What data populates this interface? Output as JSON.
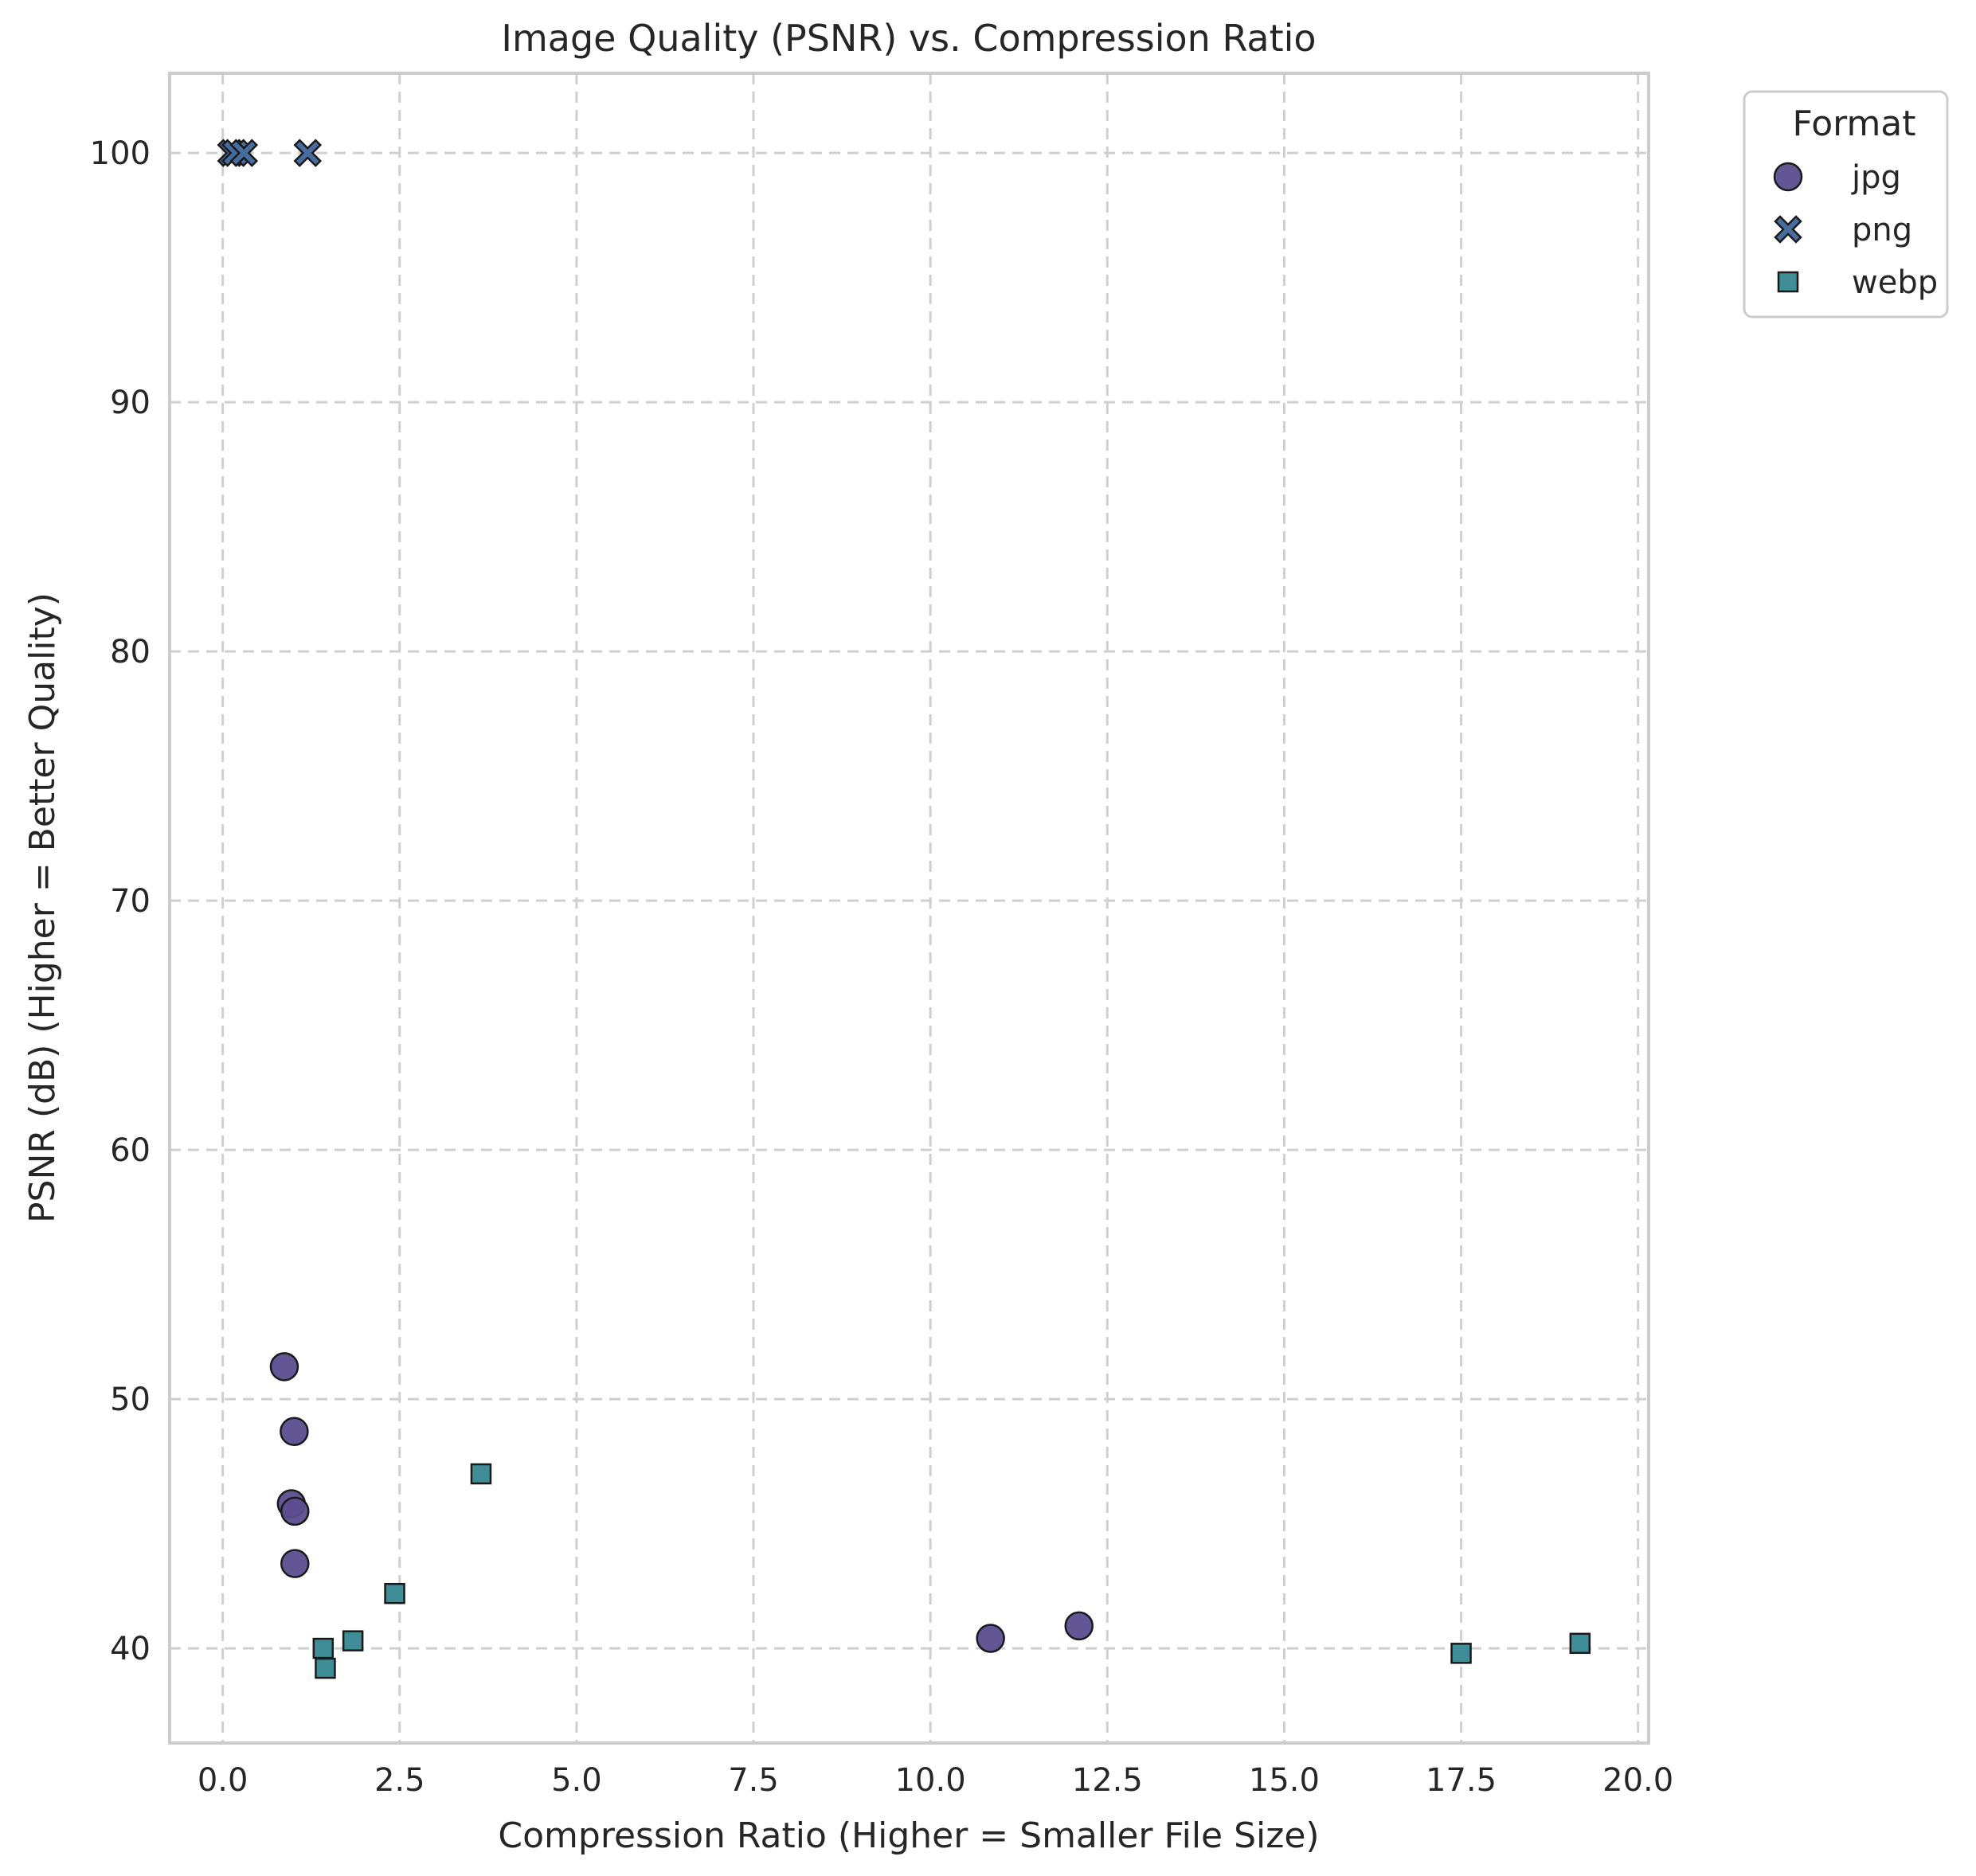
{
  "chart_data": {
    "type": "scatter",
    "title": "Image Quality (PSNR) vs. Compression Ratio",
    "xlabel": "Compression Ratio (Higher = Smaller File Size)",
    "ylabel": "PSNR (dB) (Higher = Better Quality)",
    "xlim": [
      -0.75,
      20.15
    ],
    "ylim": [
      36.2,
      103.2
    ],
    "x_ticks": [
      0.0,
      2.5,
      5.0,
      7.5,
      10.0,
      12.5,
      15.0,
      17.5,
      20.0
    ],
    "x_tick_labels": [
      "0.0",
      "2.5",
      "5.0",
      "7.5",
      "10.0",
      "12.5",
      "15.0",
      "17.5",
      "20.0"
    ],
    "y_ticks": [
      40,
      50,
      60,
      70,
      80,
      90,
      100
    ],
    "y_tick_labels": [
      "40",
      "50",
      "60",
      "70",
      "80",
      "90",
      "100"
    ],
    "grid": true,
    "legend": {
      "title": "Format",
      "placement": "outside upper-right"
    },
    "series": [
      {
        "name": "jpg",
        "marker": "circle",
        "color": "#5b4d8f",
        "points": [
          {
            "x": 0.87,
            "y": 51.3
          },
          {
            "x": 1.01,
            "y": 48.7
          },
          {
            "x": 0.97,
            "y": 45.8
          },
          {
            "x": 1.02,
            "y": 45.5
          },
          {
            "x": 1.02,
            "y": 43.4
          },
          {
            "x": 10.85,
            "y": 40.4
          },
          {
            "x": 12.1,
            "y": 40.9
          }
        ]
      },
      {
        "name": "png",
        "marker": "x",
        "color": "#476c9e",
        "points": [
          {
            "x": 0.12,
            "y": 100.0
          },
          {
            "x": 0.18,
            "y": 100.0
          },
          {
            "x": 0.3,
            "y": 100.0
          },
          {
            "x": 1.2,
            "y": 100.0
          }
        ]
      },
      {
        "name": "webp",
        "marker": "square",
        "color": "#3f8d96",
        "points": [
          {
            "x": 1.42,
            "y": 40.0
          },
          {
            "x": 1.45,
            "y": 39.2
          },
          {
            "x": 1.84,
            "y": 40.3
          },
          {
            "x": 2.43,
            "y": 42.2
          },
          {
            "x": 3.65,
            "y": 47.0
          },
          {
            "x": 17.5,
            "y": 39.8
          },
          {
            "x": 19.18,
            "y": 40.2
          }
        ]
      }
    ]
  }
}
